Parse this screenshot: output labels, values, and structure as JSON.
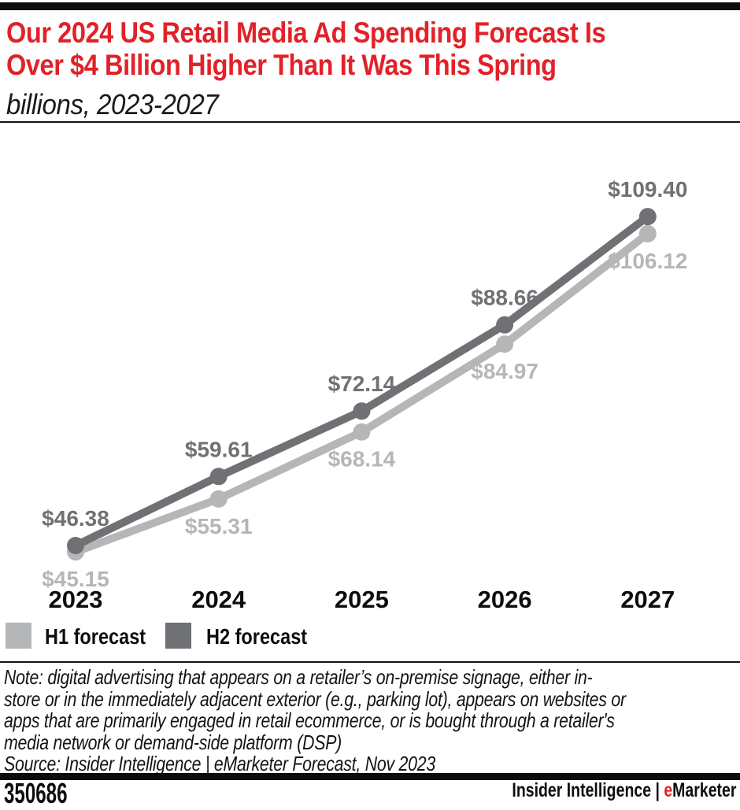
{
  "colors": {
    "accent_red": "#e22128",
    "h1_gray": "#b5b6b8",
    "h2_gray": "#707174"
  },
  "title": {
    "lines": [
      "Our 2024 US Retail Media Ad Spending Forecast Is",
      "Over $4 Billion Higher Than It Was This Spring"
    ]
  },
  "subtitle": "billions, 2023-2027",
  "chart_data": {
    "type": "line",
    "title": "Our 2024 US Retail Media Ad Spending Forecast Is Over $4 Billion Higher Than It Was This Spring",
    "subtitle": "billions, 2023-2027",
    "unit": "US$ billions",
    "categories": [
      "2023",
      "2024",
      "2025",
      "2026",
      "2027"
    ],
    "series": [
      {
        "name": "H1 forecast",
        "color": "#b5b6b8",
        "values": [
          45.15,
          55.31,
          68.14,
          84.97,
          106.12
        ],
        "labels": [
          "$45.15",
          "$55.31",
          "$68.14",
          "$84.97",
          "$106.12"
        ]
      },
      {
        "name": "H2 forecast",
        "color": "#707174",
        "values": [
          46.38,
          59.61,
          72.14,
          88.66,
          109.4
        ],
        "labels": [
          "$46.38",
          "$59.61",
          "$72.14",
          "$88.66",
          "$109.40"
        ]
      }
    ],
    "legend_position": "bottom-left",
    "grid": false,
    "y_axis_visible": false,
    "data_labels_visible": true
  },
  "note": {
    "lines": [
      "Note: digital advertising that appears on a retailer’s on-premise signage, either in-",
      "store or in the immediately adjacent exterior (e.g., parking lot), appears on websites or",
      "apps that are primarily engaged in retail ecommerce, or is bought through a retailer's",
      "media network or demand-side platform (DSP)"
    ],
    "source": "Source: Insider Intelligence | eMarketer Forecast, Nov 2023"
  },
  "footer": {
    "chart_id": "350686",
    "brand_prefix": "Insider Intelligence | ",
    "brand_e": "e",
    "brand_rest": "Marketer"
  }
}
